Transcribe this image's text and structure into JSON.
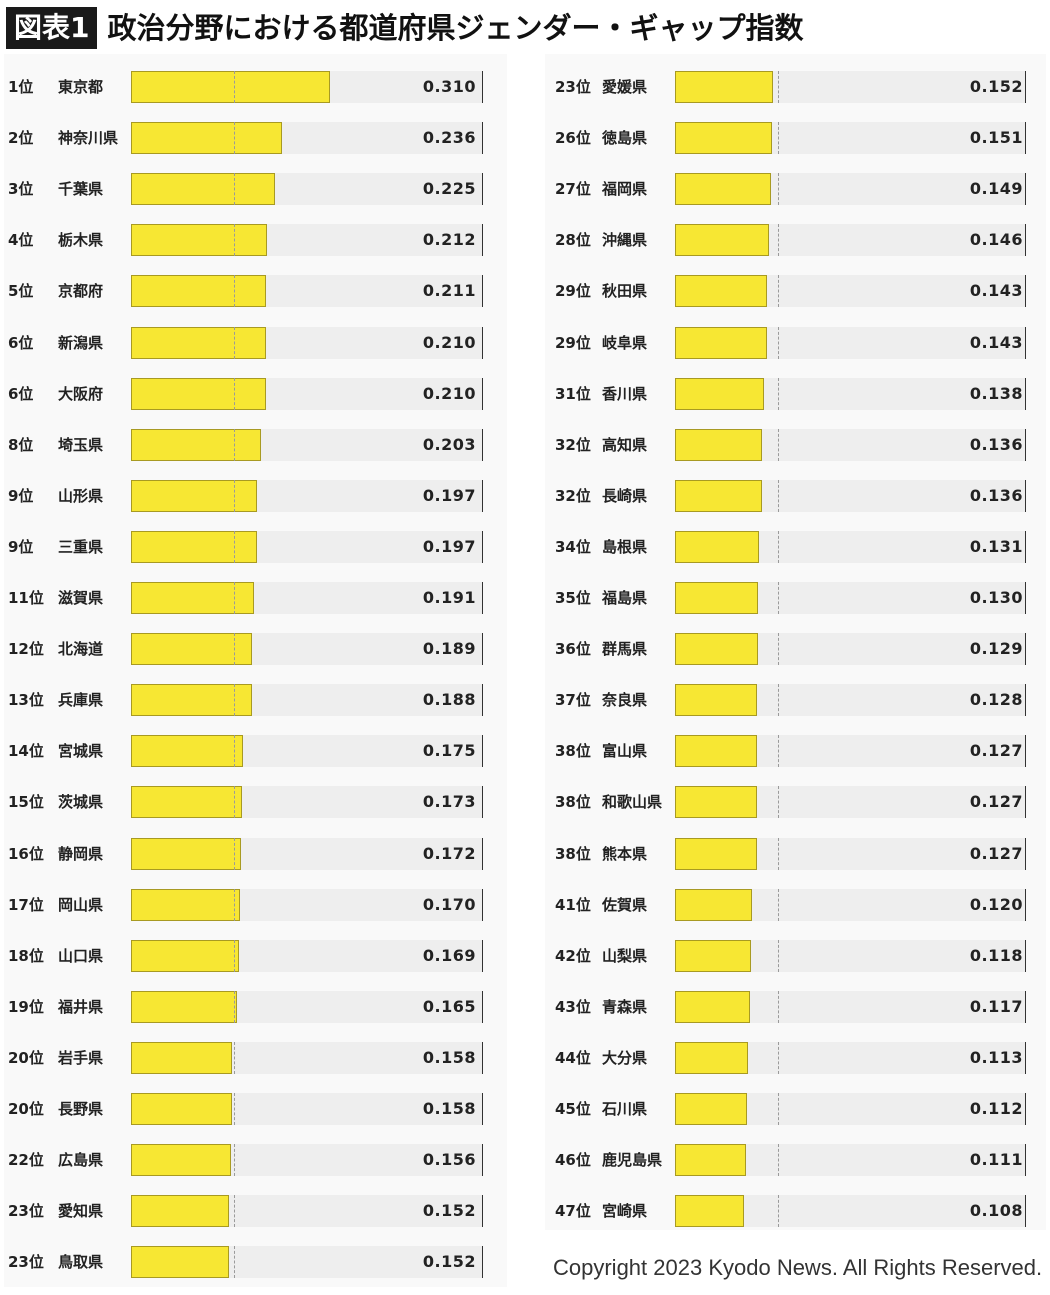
{
  "header": {
    "badge": "図表1",
    "title": "政治分野における都道府県ジェンダー・ギャップ指数"
  },
  "footer": {
    "copyright": "Copyright 2023 Kyodo News. All Rights Reserved."
  },
  "colors": {
    "bar": "#f7e733",
    "track": "#eeeeee",
    "panel": "#f9f9f9"
  },
  "chart_data": {
    "type": "bar",
    "orientation": "horizontal",
    "xlim": [
      0,
      0.31
    ],
    "reference_line_value": 0.16,
    "grid": false,
    "columns": [
      {
        "items": [
          {
            "rank": "1位",
            "name": "東京都",
            "value": 0.31,
            "value_label": "0.310"
          },
          {
            "rank": "2位",
            "name": "神奈川県",
            "value": 0.236,
            "value_label": "0.236"
          },
          {
            "rank": "3位",
            "name": "千葉県",
            "value": 0.225,
            "value_label": "0.225"
          },
          {
            "rank": "4位",
            "name": "栃木県",
            "value": 0.212,
            "value_label": "0.212"
          },
          {
            "rank": "5位",
            "name": "京都府",
            "value": 0.211,
            "value_label": "0.211"
          },
          {
            "rank": "6位",
            "name": "新潟県",
            "value": 0.21,
            "value_label": "0.210"
          },
          {
            "rank": "6位",
            "name": "大阪府",
            "value": 0.21,
            "value_label": "0.210"
          },
          {
            "rank": "8位",
            "name": "埼玉県",
            "value": 0.203,
            "value_label": "0.203"
          },
          {
            "rank": "9位",
            "name": "山形県",
            "value": 0.197,
            "value_label": "0.197"
          },
          {
            "rank": "9位",
            "name": "三重県",
            "value": 0.197,
            "value_label": "0.197"
          },
          {
            "rank": "11位",
            "name": "滋賀県",
            "value": 0.191,
            "value_label": "0.191"
          },
          {
            "rank": "12位",
            "name": "北海道",
            "value": 0.189,
            "value_label": "0.189"
          },
          {
            "rank": "13位",
            "name": "兵庫県",
            "value": 0.188,
            "value_label": "0.188"
          },
          {
            "rank": "14位",
            "name": "宮城県",
            "value": 0.175,
            "value_label": "0.175"
          },
          {
            "rank": "15位",
            "name": "茨城県",
            "value": 0.173,
            "value_label": "0.173"
          },
          {
            "rank": "16位",
            "name": "静岡県",
            "value": 0.172,
            "value_label": "0.172"
          },
          {
            "rank": "17位",
            "name": "岡山県",
            "value": 0.17,
            "value_label": "0.170"
          },
          {
            "rank": "18位",
            "name": "山口県",
            "value": 0.169,
            "value_label": "0.169"
          },
          {
            "rank": "19位",
            "name": "福井県",
            "value": 0.165,
            "value_label": "0.165"
          },
          {
            "rank": "20位",
            "name": "岩手県",
            "value": 0.158,
            "value_label": "0.158"
          },
          {
            "rank": "20位",
            "name": "長野県",
            "value": 0.158,
            "value_label": "0.158"
          },
          {
            "rank": "22位",
            "name": "広島県",
            "value": 0.156,
            "value_label": "0.156"
          },
          {
            "rank": "23位",
            "name": "愛知県",
            "value": 0.152,
            "value_label": "0.152"
          },
          {
            "rank": "23位",
            "name": "鳥取県",
            "value": 0.152,
            "value_label": "0.152"
          }
        ]
      },
      {
        "items": [
          {
            "rank": "23位",
            "name": "愛媛県",
            "value": 0.152,
            "value_label": "0.152"
          },
          {
            "rank": "26位",
            "name": "徳島県",
            "value": 0.151,
            "value_label": "0.151"
          },
          {
            "rank": "27位",
            "name": "福岡県",
            "value": 0.149,
            "value_label": "0.149"
          },
          {
            "rank": "28位",
            "name": "沖縄県",
            "value": 0.146,
            "value_label": "0.146"
          },
          {
            "rank": "29位",
            "name": "秋田県",
            "value": 0.143,
            "value_label": "0.143"
          },
          {
            "rank": "29位",
            "name": "岐阜県",
            "value": 0.143,
            "value_label": "0.143"
          },
          {
            "rank": "31位",
            "name": "香川県",
            "value": 0.138,
            "value_label": "0.138"
          },
          {
            "rank": "32位",
            "name": "高知県",
            "value": 0.136,
            "value_label": "0.136"
          },
          {
            "rank": "32位",
            "name": "長崎県",
            "value": 0.136,
            "value_label": "0.136"
          },
          {
            "rank": "34位",
            "name": "島根県",
            "value": 0.131,
            "value_label": "0.131"
          },
          {
            "rank": "35位",
            "name": "福島県",
            "value": 0.13,
            "value_label": "0.130"
          },
          {
            "rank": "36位",
            "name": "群馬県",
            "value": 0.129,
            "value_label": "0.129"
          },
          {
            "rank": "37位",
            "name": "奈良県",
            "value": 0.128,
            "value_label": "0.128"
          },
          {
            "rank": "38位",
            "name": "富山県",
            "value": 0.127,
            "value_label": "0.127"
          },
          {
            "rank": "38位",
            "name": "和歌山県",
            "value": 0.127,
            "value_label": "0.127"
          },
          {
            "rank": "38位",
            "name": "熊本県",
            "value": 0.127,
            "value_label": "0.127"
          },
          {
            "rank": "41位",
            "name": "佐賀県",
            "value": 0.12,
            "value_label": "0.120"
          },
          {
            "rank": "42位",
            "name": "山梨県",
            "value": 0.118,
            "value_label": "0.118"
          },
          {
            "rank": "43位",
            "name": "青森県",
            "value": 0.117,
            "value_label": "0.117"
          },
          {
            "rank": "44位",
            "name": "大分県",
            "value": 0.113,
            "value_label": "0.113"
          },
          {
            "rank": "45位",
            "name": "石川県",
            "value": 0.112,
            "value_label": "0.112"
          },
          {
            "rank": "46位",
            "name": "鹿児島県",
            "value": 0.111,
            "value_label": "0.111"
          },
          {
            "rank": "47位",
            "name": "宮崎県",
            "value": 0.108,
            "value_label": "0.108"
          }
        ]
      }
    ]
  }
}
